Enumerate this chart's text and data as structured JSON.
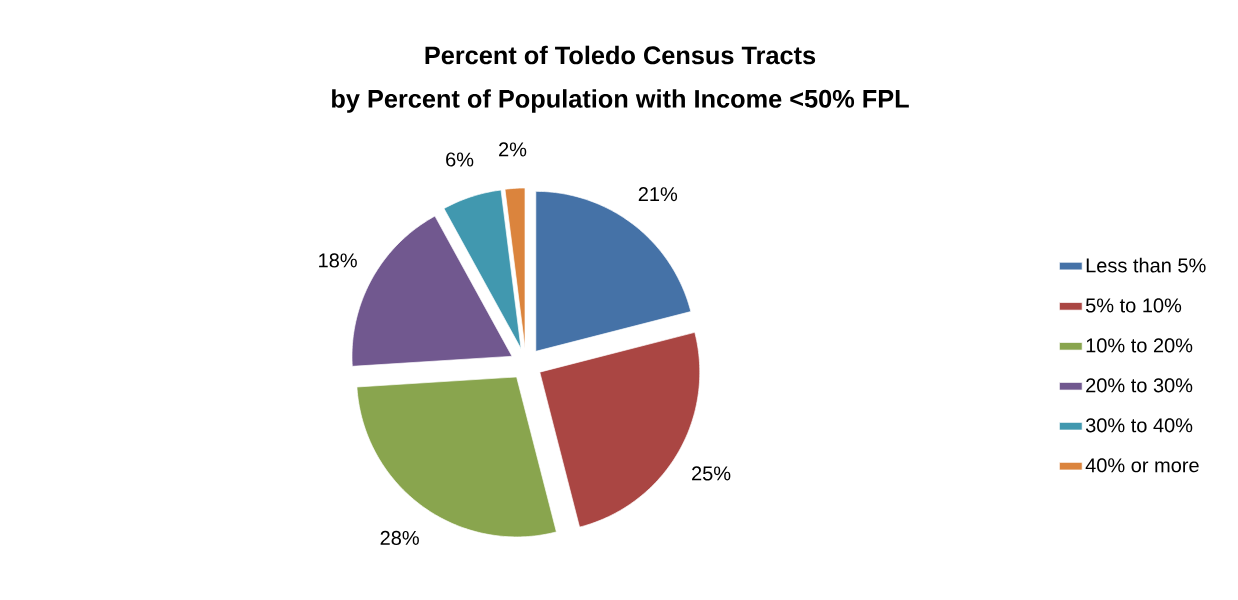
{
  "chart_data": {
    "type": "pie",
    "title": "Percent of Toledo Census Tracts",
    "subtitle": "by Percent of Population with Income <50% FPL",
    "categories": [
      "Less than 5%",
      "5% to 10%",
      "10% to 20%",
      "20% to 30%",
      "30% to 40%",
      "40% or more"
    ],
    "values": [
      21,
      25,
      28,
      18,
      6,
      2
    ],
    "colors": [
      "#4572a7",
      "#aa4643",
      "#89a54e",
      "#71588f",
      "#4198af",
      "#db843d"
    ],
    "value_labels": [
      "21%",
      "25%",
      "28%",
      "18%",
      "6%",
      "2%"
    ],
    "legend": "right"
  }
}
